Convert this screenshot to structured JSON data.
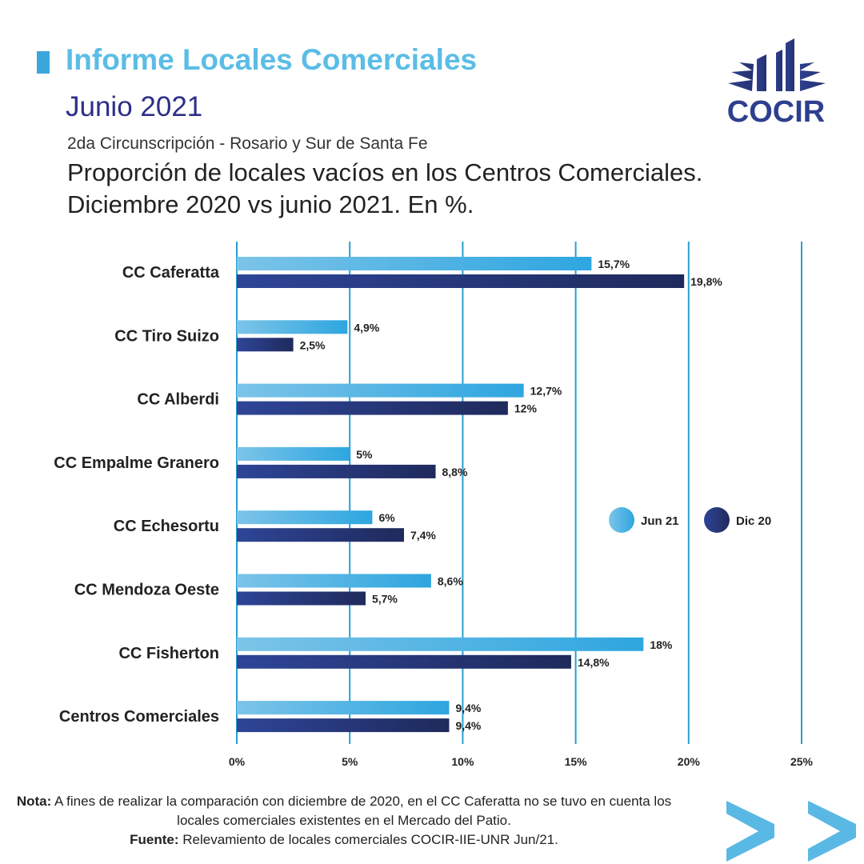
{
  "header": {
    "title": "Informe Locales Comerciales",
    "subtitle": "Junio 2021",
    "region": "2da Circunscripción - Rosario y Sur de Santa Fe",
    "heading": "Proporción de locales vacíos en los Centros Comerciales. Diciembre 2020 vs junio 2021. En %.",
    "logo_text": "COCIR"
  },
  "chart_data": {
    "type": "bar",
    "orientation": "horizontal",
    "title": "Proporción de locales vacíos en los Centros Comerciales. Diciembre 2020 vs junio 2021. En %.",
    "categories": [
      "CC Caferatta",
      "CC Tiro Suizo",
      "CC Alberdi",
      "CC Empalme Granero",
      "CC Echesortu",
      "CC Mendoza Oeste",
      "CC Fisherton",
      "Centros Comerciales"
    ],
    "series": [
      {
        "name": "Jun 21",
        "color": "#3aa7dc",
        "values": [
          15.7,
          4.9,
          12.7,
          5,
          6,
          8.6,
          18,
          9.4
        ],
        "labels": [
          "15,7%",
          "4,9%",
          "12,7%",
          "5%",
          "6%",
          "8,6%",
          "18%",
          "9,4%"
        ]
      },
      {
        "name": "Dic 20",
        "color": "#2b3580",
        "values": [
          19.8,
          2.5,
          12,
          8.8,
          7.4,
          5.7,
          14.8,
          9.4
        ],
        "labels": [
          "19,8%",
          "2,5%",
          "12%",
          "8,8%",
          "7,4%",
          "5,7%",
          "14,8%",
          "9,4%"
        ]
      }
    ],
    "xlim": [
      0,
      25
    ],
    "xticks": [
      0,
      5,
      10,
      15,
      20,
      25
    ],
    "xtick_labels": [
      "0%",
      "5%",
      "10%",
      "15%",
      "20%",
      "25%"
    ],
    "grid": true,
    "legend_position": "right"
  },
  "footer": {
    "note_label": "Nota:",
    "note_text": " A fines de realizar la comparación con diciembre de 2020, en el CC Caferatta no se tuvo en cuenta los locales comerciales existentes en el Mercado del Patio.",
    "source_label": "Fuente:",
    "source_text": " Relevamiento de locales comerciales COCIR-IIE-UNR Jun/21."
  }
}
